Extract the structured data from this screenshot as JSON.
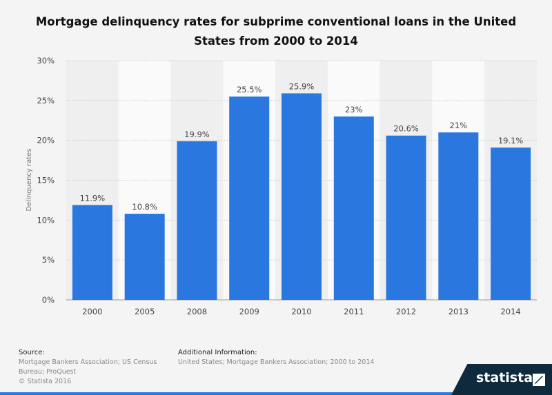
{
  "title": "Mortgage delinquency rates for subprime conventional loans in the United States from 2000 to 2014",
  "chart_data": {
    "type": "bar",
    "title": "Mortgage delinquency rates for subprime conventional loans in the United States from 2000 to 2014",
    "xlabel": "",
    "ylabel": "Delinquency rates",
    "categories": [
      "2000",
      "2005",
      "2008",
      "2009",
      "2010",
      "2011",
      "2012",
      "2013",
      "2014"
    ],
    "values": [
      11.9,
      10.8,
      19.9,
      25.5,
      25.9,
      23,
      20.6,
      21,
      19.1
    ],
    "value_labels": [
      "11.9%",
      "10.8%",
      "19.9%",
      "25.5%",
      "25.9%",
      "23%",
      "20.6%",
      "21%",
      "19.1%"
    ],
    "ylim": [
      0,
      30
    ],
    "yticks": [
      "0%",
      "5%",
      "10%",
      "15%",
      "20%",
      "25%",
      "30%"
    ],
    "grid": true,
    "bar_color": "#2a78df"
  },
  "footer": {
    "source_heading": "Source:",
    "source_text": "Mortgage Bankers Association; US Census Bureau; ProQuest",
    "copyright": "© Statista 2016",
    "info_heading": "Additional Information:",
    "info_text": "United States; Mortgage Bankers Association; 2000 to 2014"
  },
  "brand": {
    "name": "statista"
  }
}
